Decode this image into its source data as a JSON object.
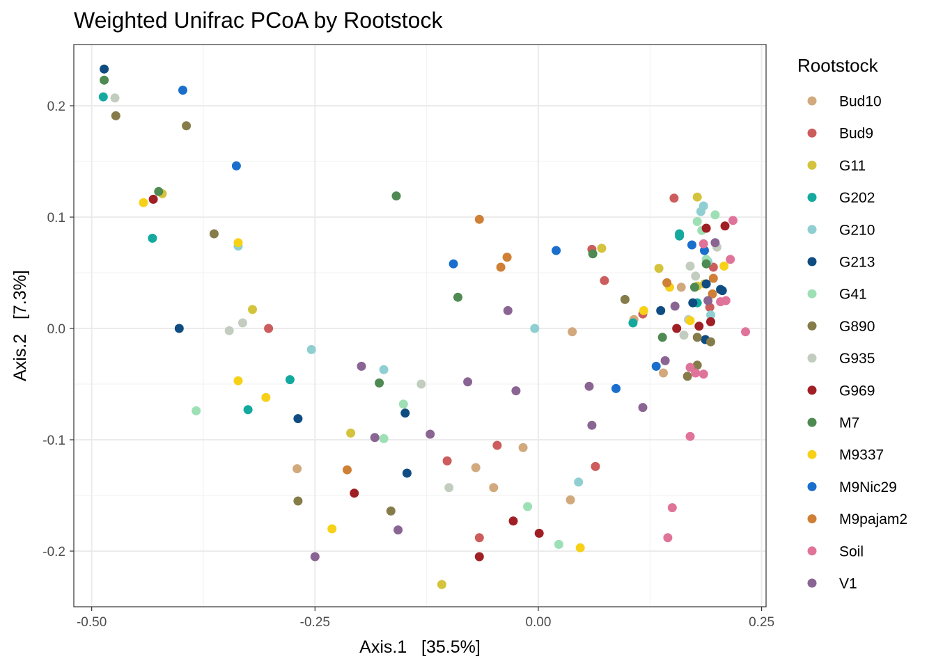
{
  "chart_data": {
    "type": "scatter",
    "title": "Weighted Unifrac PCoA by Rootstock",
    "xlabel": "Axis.1   [35.5%]",
    "ylabel": "Axis.2   [7.3%]",
    "xlim": [
      -0.52,
      0.255
    ],
    "ylim": [
      -0.25,
      0.255
    ],
    "x_ticks": [
      -0.5,
      -0.25,
      0.0,
      0.25
    ],
    "x_tick_labels": [
      "-0.50",
      "-0.25",
      "0.00",
      "0.25"
    ],
    "y_ticks": [
      -0.2,
      -0.1,
      0.0,
      0.1,
      0.2
    ],
    "y_tick_labels": [
      "-0.2",
      "-0.1",
      "0.0",
      "0.1",
      "0.2"
    ],
    "grid": true,
    "legend_title": "Rootstock",
    "legend_position": "right",
    "series": [
      {
        "name": "Bud10",
        "color": "#d1a97c",
        "points": [
          [
            -0.27,
            -0.126
          ],
          [
            -0.07,
            -0.125
          ],
          [
            -0.05,
            -0.143
          ],
          [
            -0.017,
            -0.107
          ],
          [
            0.036,
            -0.154
          ],
          [
            0.038,
            -0.003
          ],
          [
            0.107,
            0.008
          ],
          [
            0.14,
            -0.04
          ],
          [
            0.16,
            0.037
          ]
        ]
      },
      {
        "name": "Bud9",
        "color": "#cd5c5c",
        "points": [
          [
            -0.302,
            0.0
          ],
          [
            -0.102,
            -0.119
          ],
          [
            -0.046,
            -0.105
          ],
          [
            -0.066,
            -0.188
          ],
          [
            0.064,
            -0.124
          ],
          [
            0.06,
            0.071
          ],
          [
            0.074,
            0.043
          ],
          [
            0.117,
            0.013
          ],
          [
            0.152,
            0.117
          ],
          [
            0.196,
            0.055
          ],
          [
            0.192,
            0.019
          ]
        ]
      },
      {
        "name": "G11",
        "color": "#d4c33c",
        "points": [
          [
            -0.421,
            0.121
          ],
          [
            -0.32,
            0.017
          ],
          [
            -0.21,
            -0.094
          ],
          [
            -0.108,
            -0.23
          ],
          [
            0.071,
            0.072
          ],
          [
            0.135,
            0.054
          ],
          [
            0.178,
            0.118
          ],
          [
            0.186,
            0.04
          ],
          [
            0.178,
            0.038
          ]
        ]
      },
      {
        "name": "G202",
        "color": "#14a99e",
        "points": [
          [
            -0.487,
            0.208
          ],
          [
            -0.432,
            0.081
          ],
          [
            -0.278,
            -0.046
          ],
          [
            -0.325,
            -0.073
          ],
          [
            0.106,
            0.005
          ],
          [
            0.158,
            0.083
          ],
          [
            0.158,
            0.085
          ],
          [
            0.178,
            0.023
          ]
        ]
      },
      {
        "name": "G210",
        "color": "#8fcfd1",
        "points": [
          [
            -0.336,
            0.074
          ],
          [
            -0.254,
            -0.019
          ],
          [
            -0.173,
            -0.037
          ],
          [
            -0.004,
            0.0
          ],
          [
            0.045,
            -0.138
          ],
          [
            0.182,
            0.105
          ],
          [
            0.185,
            0.11
          ],
          [
            0.19,
            0.06
          ],
          [
            0.193,
            0.012
          ]
        ]
      },
      {
        "name": "G213",
        "color": "#0f4c81",
        "points": [
          [
            -0.486,
            0.233
          ],
          [
            -0.402,
            0.0
          ],
          [
            -0.269,
            -0.081
          ],
          [
            -0.149,
            -0.076
          ],
          [
            -0.147,
            -0.13
          ],
          [
            0.137,
            0.016
          ],
          [
            0.173,
            0.023
          ],
          [
            0.188,
            0.04
          ],
          [
            0.187,
            -0.01
          ],
          [
            0.204,
            0.035
          ],
          [
            0.206,
            0.034
          ]
        ]
      },
      {
        "name": "G41",
        "color": "#9de0b5",
        "points": [
          [
            -0.383,
            -0.074
          ],
          [
            -0.151,
            -0.068
          ],
          [
            -0.173,
            -0.099
          ],
          [
            -0.012,
            -0.16
          ],
          [
            0.023,
            -0.194
          ],
          [
            0.178,
            0.096
          ],
          [
            0.183,
            0.088
          ],
          [
            0.198,
            0.102
          ],
          [
            0.188,
            0.062
          ]
        ]
      },
      {
        "name": "G890",
        "color": "#857c4a",
        "points": [
          [
            -0.473,
            0.191
          ],
          [
            -0.394,
            0.182
          ],
          [
            -0.363,
            0.085
          ],
          [
            -0.269,
            -0.155
          ],
          [
            -0.165,
            -0.164
          ],
          [
            0.097,
            0.026
          ],
          [
            0.167,
            -0.043
          ],
          [
            0.178,
            -0.008
          ],
          [
            0.178,
            -0.033
          ],
          [
            0.193,
            -0.012
          ]
        ]
      },
      {
        "name": "G935",
        "color": "#c3cdbf",
        "points": [
          [
            -0.474,
            0.207
          ],
          [
            -0.331,
            0.005
          ],
          [
            -0.346,
            -0.002
          ],
          [
            -0.131,
            -0.05
          ],
          [
            -0.1,
            -0.143
          ],
          [
            0.163,
            -0.006
          ],
          [
            0.17,
            0.056
          ],
          [
            0.176,
            0.047
          ],
          [
            0.2,
            0.073
          ],
          [
            0.168,
            0.008
          ]
        ]
      },
      {
        "name": "G969",
        "color": "#a01f24",
        "points": [
          [
            -0.431,
            0.116
          ],
          [
            -0.206,
            -0.148
          ],
          [
            -0.066,
            -0.205
          ],
          [
            -0.028,
            -0.173
          ],
          [
            0.001,
            -0.184
          ],
          [
            0.155,
            0.0
          ],
          [
            0.18,
            0.002
          ],
          [
            0.193,
            0.006
          ],
          [
            0.209,
            0.092
          ],
          [
            0.188,
            0.09
          ]
        ]
      },
      {
        "name": "M7",
        "color": "#4e8a51",
        "points": [
          [
            -0.486,
            0.223
          ],
          [
            -0.425,
            0.123
          ],
          [
            -0.159,
            0.119
          ],
          [
            -0.09,
            0.028
          ],
          [
            -0.178,
            -0.049
          ],
          [
            0.061,
            0.067
          ],
          [
            0.139,
            -0.008
          ],
          [
            0.175,
            0.037
          ],
          [
            0.188,
            0.058
          ]
        ]
      },
      {
        "name": "M9337",
        "color": "#f7d117",
        "points": [
          [
            -0.442,
            0.113
          ],
          [
            -0.336,
            0.077
          ],
          [
            -0.336,
            -0.047
          ],
          [
            -0.305,
            -0.062
          ],
          [
            -0.231,
            -0.18
          ],
          [
            0.047,
            -0.197
          ],
          [
            0.118,
            0.016
          ],
          [
            0.147,
            0.037
          ],
          [
            0.17,
            0.007
          ],
          [
            0.208,
            0.056
          ]
        ]
      },
      {
        "name": "M9Nic29",
        "color": "#1a6fcc",
        "points": [
          [
            -0.398,
            0.214
          ],
          [
            -0.338,
            0.146
          ],
          [
            -0.095,
            0.058
          ],
          [
            0.02,
            0.07
          ],
          [
            0.087,
            -0.054
          ],
          [
            0.132,
            -0.034
          ],
          [
            0.172,
            0.075
          ],
          [
            0.186,
            0.07
          ]
        ]
      },
      {
        "name": "M9pajam2",
        "color": "#cf7f36",
        "points": [
          [
            -0.214,
            -0.127
          ],
          [
            -0.066,
            0.098
          ],
          [
            -0.042,
            0.055
          ],
          [
            -0.035,
            0.064
          ],
          [
            0.144,
            0.041
          ],
          [
            0.196,
            0.045
          ],
          [
            0.195,
            0.031
          ]
        ]
      },
      {
        "name": "Soil",
        "color": "#e07399",
        "points": [
          [
            0.232,
            -0.003
          ],
          [
            0.218,
            0.097
          ],
          [
            0.215,
            0.062
          ],
          [
            0.21,
            0.025
          ],
          [
            0.204,
            0.024
          ],
          [
            0.185,
            0.076
          ],
          [
            0.17,
            -0.035
          ],
          [
            0.176,
            -0.04
          ],
          [
            0.185,
            -0.041
          ],
          [
            0.17,
            -0.097
          ],
          [
            0.15,
            -0.161
          ],
          [
            0.145,
            -0.188
          ]
        ]
      },
      {
        "name": "V1",
        "color": "#8a6593",
        "points": [
          [
            -0.25,
            -0.205
          ],
          [
            -0.198,
            -0.034
          ],
          [
            -0.183,
            -0.098
          ],
          [
            -0.157,
            -0.181
          ],
          [
            -0.121,
            -0.095
          ],
          [
            -0.079,
            -0.048
          ],
          [
            -0.034,
            0.016
          ],
          [
            -0.025,
            -0.056
          ],
          [
            0.057,
            -0.052
          ],
          [
            0.06,
            -0.087
          ],
          [
            0.117,
            -0.071
          ],
          [
            0.142,
            -0.029
          ],
          [
            0.153,
            0.02
          ],
          [
            0.19,
            0.025
          ],
          [
            0.198,
            0.077
          ]
        ]
      }
    ]
  }
}
